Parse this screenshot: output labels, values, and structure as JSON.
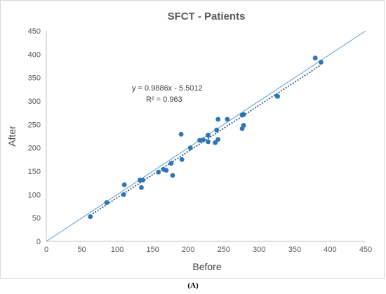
{
  "chart_data": {
    "type": "scatter",
    "title": "SFCT - Patients",
    "xlabel": "Before",
    "ylabel": "After",
    "xlim": [
      0,
      450
    ],
    "ylim": [
      0,
      450
    ],
    "xticks": [
      "0",
      "50",
      "100",
      "150",
      "200",
      "250",
      "300",
      "350",
      "400",
      "450"
    ],
    "yticks": [
      "0",
      "50",
      "100",
      "150",
      "200",
      "250",
      "300",
      "350",
      "400",
      "450"
    ],
    "grid": false,
    "legend": "none",
    "series": [
      {
        "points": [
          [
            62,
            53
          ],
          [
            85,
            83
          ],
          [
            109,
            100
          ],
          [
            110,
            121
          ],
          [
            132,
            131
          ],
          [
            134,
            115
          ],
          [
            136,
            131
          ],
          [
            158,
            148
          ],
          [
            165,
            154
          ],
          [
            169,
            152
          ],
          [
            176,
            167
          ],
          [
            178,
            141
          ],
          [
            190,
            229
          ],
          [
            191,
            175
          ],
          [
            203,
            200
          ],
          [
            216,
            216
          ],
          [
            221,
            217
          ],
          [
            228,
            227
          ],
          [
            228,
            213
          ],
          [
            238,
            211
          ],
          [
            240,
            238
          ],
          [
            242,
            261
          ],
          [
            242,
            218
          ],
          [
            255,
            261
          ],
          [
            276,
            270
          ],
          [
            276,
            241
          ],
          [
            278,
            271
          ],
          [
            278,
            248
          ],
          [
            325,
            311
          ],
          [
            326,
            310
          ],
          [
            379,
            392
          ],
          [
            387,
            383
          ]
        ]
      }
    ],
    "reference_line": {
      "from": [
        0,
        0
      ],
      "to": [
        450,
        450
      ]
    },
    "trendline": {
      "slope": 0.9886,
      "intercept": -5.5012,
      "x_range": [
        62,
        387
      ]
    },
    "annotations": {
      "equation": "y = 0.9886x - 5.5012",
      "r_squared": "R² = 0.963"
    },
    "colors": {
      "points": "#2e75b6",
      "reference": "#5b9bd5",
      "trendline": "#2e4f8f"
    }
  },
  "caption": "(A)"
}
